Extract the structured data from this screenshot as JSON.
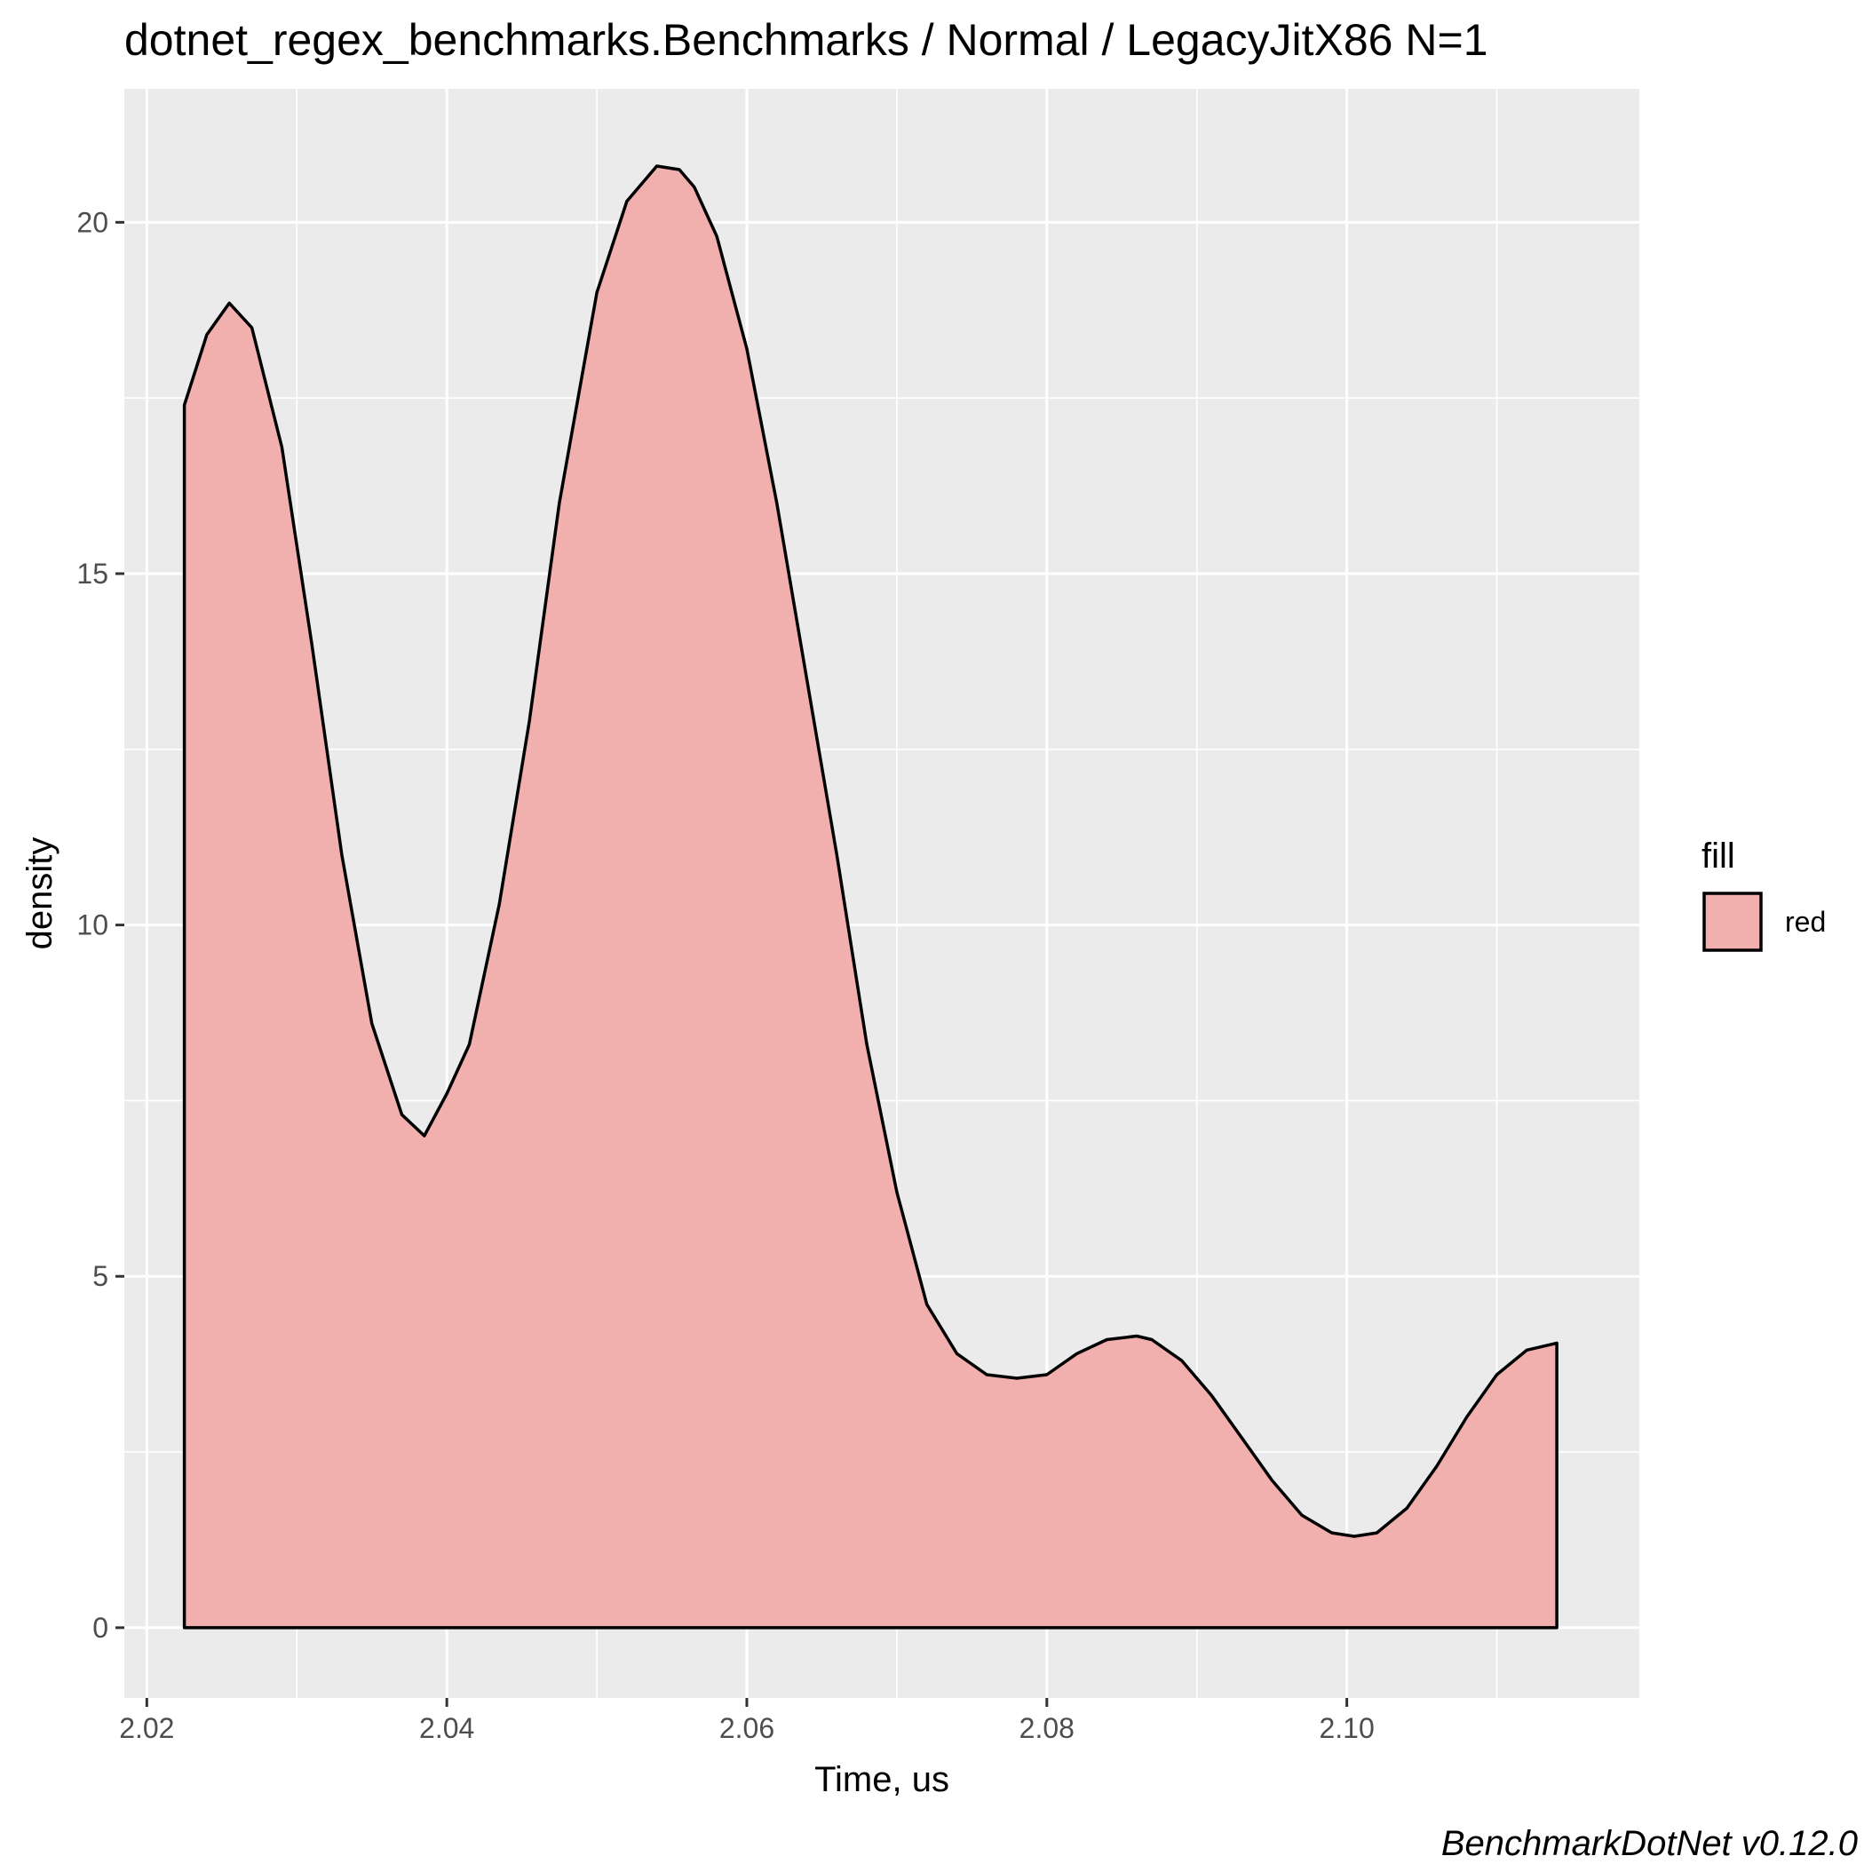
{
  "chart_data": {
    "type": "area",
    "title": "dotnet_regex_benchmarks.Benchmarks / Normal / LegacyJitX86 N=1",
    "xlabel": "Time, us",
    "ylabel": "density",
    "caption": "BenchmarkDotNet v0.12.0",
    "xlim": [
      2.0185,
      2.1195
    ],
    "ylim": [
      -1.0,
      21.9
    ],
    "x_ticks": [
      2.02,
      2.04,
      2.06,
      2.08,
      2.1
    ],
    "x_tick_labels": [
      "2.02",
      "2.04",
      "2.06",
      "2.08",
      "2.10"
    ],
    "y_ticks": [
      0,
      5,
      10,
      15,
      20
    ],
    "y_tick_labels": [
      "0",
      "5",
      "10",
      "15",
      "20"
    ],
    "grid": true,
    "panel_background": "#ebebeb",
    "fill_color": "#f1b0ae",
    "line_color": "#000000",
    "legend": {
      "title": "fill",
      "placement": "right",
      "entries": [
        {
          "label": "red",
          "color": "#f1b0ae"
        }
      ]
    },
    "series": [
      {
        "x": [
          2.0225,
          2.024,
          2.0255,
          2.027,
          2.029,
          2.031,
          2.033,
          2.035,
          2.037,
          2.0385,
          2.04,
          2.0415,
          2.0435,
          2.0455,
          2.0475,
          2.05,
          2.052,
          2.054,
          2.0555,
          2.0565,
          2.058,
          2.06,
          2.062,
          2.064,
          2.066,
          2.068,
          2.07,
          2.072,
          2.074,
          2.076,
          2.078,
          2.08,
          2.082,
          2.084,
          2.086,
          2.087,
          2.089,
          2.091,
          2.093,
          2.095,
          2.097,
          2.099,
          2.1005,
          2.102,
          2.104,
          2.106,
          2.108,
          2.11,
          2.112,
          2.114
        ],
        "y": [
          17.4,
          18.4,
          18.85,
          18.5,
          16.8,
          14.0,
          11.0,
          8.6,
          7.3,
          7.0,
          7.6,
          8.3,
          10.3,
          12.9,
          16.0,
          19.0,
          20.3,
          20.8,
          20.75,
          20.5,
          19.8,
          18.2,
          16.0,
          13.5,
          11.0,
          8.3,
          6.2,
          4.6,
          3.9,
          3.6,
          3.55,
          3.6,
          3.9,
          4.1,
          4.15,
          4.1,
          3.8,
          3.3,
          2.7,
          2.1,
          1.6,
          1.35,
          1.3,
          1.35,
          1.7,
          2.3,
          3.0,
          3.6,
          3.95,
          4.05
        ]
      }
    ]
  }
}
